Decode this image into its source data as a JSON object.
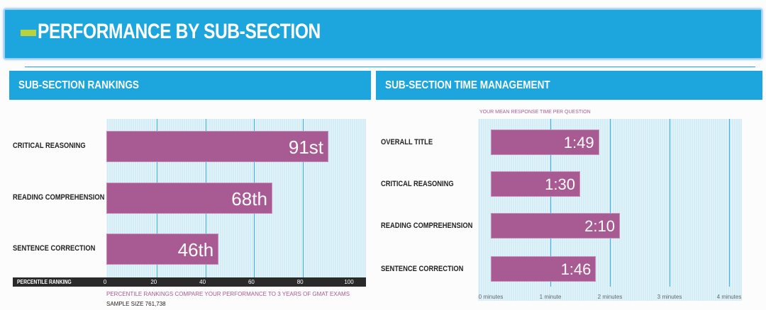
{
  "header": {
    "title": "PERFORMANCE BY SUB-SECTION",
    "accent": "#bcd23c",
    "brand": "#1da6dd"
  },
  "left": {
    "title": "SUB-SECTION RANKINGS",
    "axis_label": "PERCENTILE RANKING",
    "note": "PERCENTILE RANKINGS COMPARE YOUR PERFORMANCE TO 3 YEARS OF GMAT EXAMS",
    "sample": "SAMPLE SIZE 761,738"
  },
  "right": {
    "title": "SUB-SECTION TIME MANAGEMENT",
    "subtitle": "YOUR MEAN RESPONSE TIME PER QUESTION"
  },
  "chart_data": [
    {
      "type": "bar",
      "orientation": "horizontal",
      "categories": [
        "CRITICAL REASONING",
        "READING COMPREHENSION",
        "SENTENCE CORRECTION"
      ],
      "values": [
        91,
        68,
        46
      ],
      "data_labels": [
        "91st",
        "68th",
        "46th"
      ],
      "xlim": [
        0,
        100
      ],
      "xticks": [
        "0",
        "20",
        "40",
        "60",
        "80",
        "100"
      ],
      "xlabel": "PERCENTILE RANKING",
      "bar_color": "#a85a93"
    },
    {
      "type": "bar",
      "orientation": "horizontal",
      "categories": [
        "OVERALL TITLE",
        "CRITICAL REASONING",
        "READING COMPREHENSION",
        "SENTENCE CORRECTION"
      ],
      "values": [
        1.8167,
        1.5,
        2.1667,
        1.7667
      ],
      "data_labels": [
        "1:49",
        "1:30",
        "2:10",
        "1:46"
      ],
      "xlim": [
        0,
        4
      ],
      "xticks": [
        "0 minutes",
        "1 minute",
        "2 minutes",
        "3 minutes",
        "4 minutes"
      ],
      "title": "YOUR MEAN RESPONSE TIME PER QUESTION",
      "bar_color": "#a85a93"
    }
  ]
}
